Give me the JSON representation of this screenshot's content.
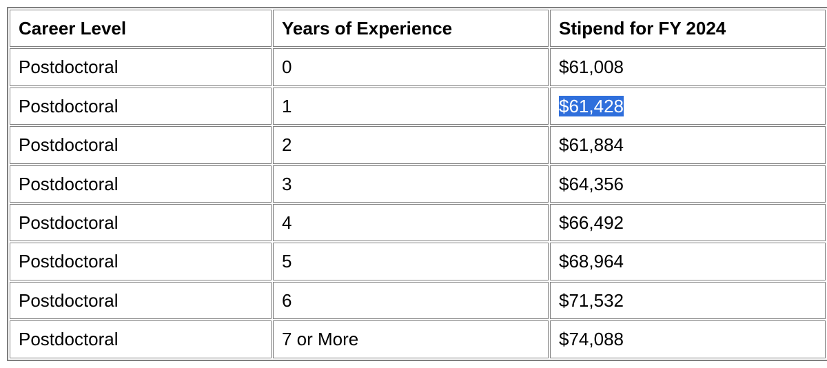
{
  "table": {
    "columns": [
      "Career Level",
      "Years of Experience",
      "Stipend for FY 2024"
    ],
    "rows": [
      [
        "Postdoctoral",
        "0",
        "$61,008"
      ],
      [
        "Postdoctoral",
        "1",
        "$61,428"
      ],
      [
        "Postdoctoral",
        "2",
        "$61,884"
      ],
      [
        "Postdoctoral",
        "3",
        "$64,356"
      ],
      [
        "Postdoctoral",
        "4",
        "$66,492"
      ],
      [
        "Postdoctoral",
        "5",
        "$68,964"
      ],
      [
        "Postdoctoral",
        "6",
        "$71,532"
      ],
      [
        "Postdoctoral",
        "7 or More",
        "$74,088"
      ]
    ],
    "selected_cell": {
      "row": 1,
      "col": 2
    },
    "selection_bg": "#2f6fdc",
    "selection_fg": "#ffffff"
  }
}
